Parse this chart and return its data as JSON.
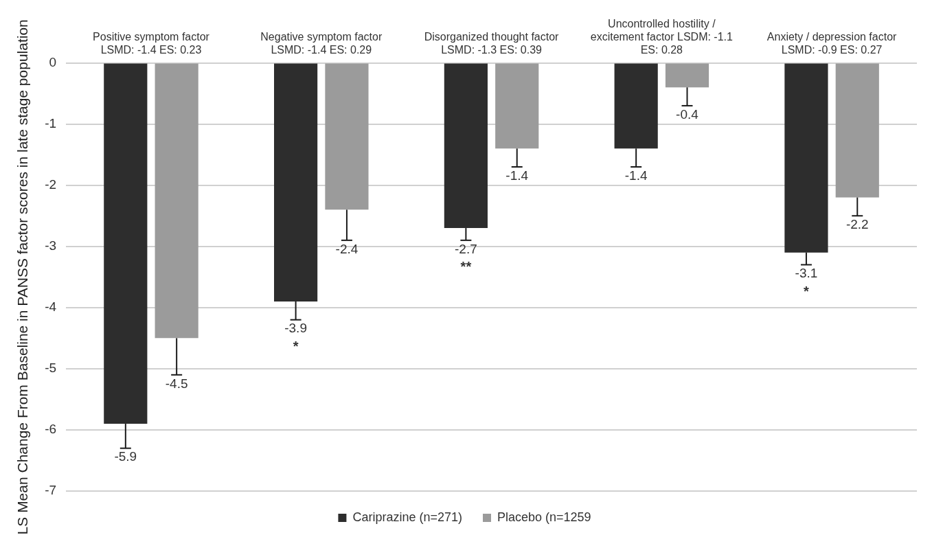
{
  "chart_data": {
    "type": "bar",
    "ylabel": "LS Mean Change From Baseline in PANSS factor scores in late stage population",
    "categories": [
      "Positive symptom factor LSMD: -1.4 ES: 0.23",
      "Negative symptom factor LSMD: -1.4 ES: 0.29",
      "Disorganized thought factor LSMD: -1.3 ES: 0.39",
      "Uncontrolled hostility / excitement factor LSDM: -1.1 ES: 0.28",
      "Anxiety / depression factor LSMD: -0.9 ES: 0.27"
    ],
    "series": [
      {
        "name": "Cariprazine (n=271)",
        "color": "#2d2d2d",
        "values": [
          -5.9,
          -3.9,
          -2.7,
          -1.4,
          -3.1
        ],
        "errors": [
          [
            -6.3,
            -5.9
          ],
          [
            -4.2,
            -3.9
          ],
          [
            -2.9,
            -2.7
          ],
          [
            -1.7,
            -1.4
          ],
          [
            -3.3,
            -3.1
          ]
        ],
        "value_labels": [
          "-5.9",
          "-3.9 *",
          "-2.7 **",
          "-1.4",
          "-3.1 *"
        ]
      },
      {
        "name": "Placebo (n=1259",
        "color": "#9b9b9b",
        "values": [
          -4.5,
          -2.4,
          -1.4,
          -0.4,
          -2.2
        ],
        "errors": [
          [
            -5.1,
            -4.5
          ],
          [
            -2.9,
            -2.4
          ],
          [
            -1.7,
            -1.4
          ],
          [
            -0.7,
            -0.4
          ],
          [
            -2.5,
            -2.2
          ]
        ],
        "value_labels": [
          "-4.5",
          "-2.4",
          "-1.4",
          "-0.4",
          "-2.2"
        ]
      }
    ],
    "ylim": [
      -7,
      0
    ],
    "yticks": [
      -7,
      -6,
      -5,
      -4,
      -3,
      -2,
      -1,
      0
    ],
    "grid": "y",
    "legend": "bottom"
  }
}
